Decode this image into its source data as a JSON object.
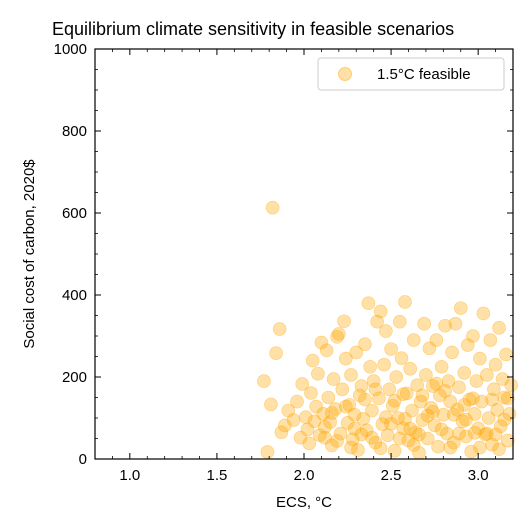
{
  "chart_data": {
    "type": "scatter",
    "title": "Equilibrium climate sensitivity in feasible scenarios",
    "xlabel": "ECS, °C",
    "ylabel": "Social cost of carbon, 2020$",
    "xlim": [
      0.8,
      3.2
    ],
    "ylim": [
      0,
      1000
    ],
    "xticks": [
      1.0,
      1.5,
      2.0,
      2.5,
      3.0
    ],
    "xtick_labels": [
      "1.0",
      "1.5",
      "2.0",
      "2.5",
      "3.0"
    ],
    "yticks": [
      0,
      200,
      400,
      600,
      800,
      1000
    ],
    "ytick_labels": [
      "0",
      "200",
      "400",
      "600",
      "800",
      "1000"
    ],
    "grid": false,
    "legend": {
      "placement": "top-right"
    },
    "series": [
      {
        "name": "1.5°C feasible",
        "color": "#ffa500",
        "opacity": 0.35,
        "points": [
          [
            1.82,
            613
          ],
          [
            1.77,
            190
          ],
          [
            1.79,
            17
          ],
          [
            1.84,
            258
          ],
          [
            1.86,
            317
          ],
          [
            1.81,
            133
          ],
          [
            1.87,
            65
          ],
          [
            1.89,
            82
          ],
          [
            1.91,
            118
          ],
          [
            1.94,
            95
          ],
          [
            1.96,
            140
          ],
          [
            1.98,
            52
          ],
          [
            1.99,
            183
          ],
          [
            2.01,
            102
          ],
          [
            2.02,
            72
          ],
          [
            2.03,
            38
          ],
          [
            2.04,
            161
          ],
          [
            2.05,
            240
          ],
          [
            2.07,
            128
          ],
          [
            2.08,
            208
          ],
          [
            2.09,
            58
          ],
          [
            2.1,
            284
          ],
          [
            2.11,
            110
          ],
          [
            2.12,
            78
          ],
          [
            2.13,
            265
          ],
          [
            2.14,
            150
          ],
          [
            2.15,
            90
          ],
          [
            2.16,
            33
          ],
          [
            2.17,
            195
          ],
          [
            2.18,
            122
          ],
          [
            2.19,
            298
          ],
          [
            2.2,
            305
          ],
          [
            2.21,
            62
          ],
          [
            2.22,
            170
          ],
          [
            2.23,
            336
          ],
          [
            2.24,
            245
          ],
          [
            2.25,
            88
          ],
          [
            2.26,
            132
          ],
          [
            2.27,
            205
          ],
          [
            2.28,
            48
          ],
          [
            2.29,
            108
          ],
          [
            2.3,
            260
          ],
          [
            2.31,
            22
          ],
          [
            2.32,
            155
          ],
          [
            2.33,
            178
          ],
          [
            2.34,
            98
          ],
          [
            2.35,
            280
          ],
          [
            2.36,
            70
          ],
          [
            2.37,
            380
          ],
          [
            2.38,
            225
          ],
          [
            2.39,
            118
          ],
          [
            2.4,
            190
          ],
          [
            2.41,
            40
          ],
          [
            2.42,
            335
          ],
          [
            2.43,
            148
          ],
          [
            2.44,
            360
          ],
          [
            2.45,
            85
          ],
          [
            2.46,
            230
          ],
          [
            2.47,
            312
          ],
          [
            2.48,
            58
          ],
          [
            2.49,
            170
          ],
          [
            2.5,
            268
          ],
          [
            2.51,
            130
          ],
          [
            2.52,
            20
          ],
          [
            2.53,
            200
          ],
          [
            2.54,
            100
          ],
          [
            2.55,
            335
          ],
          [
            2.56,
            246
          ],
          [
            2.57,
            75
          ],
          [
            2.58,
            383
          ],
          [
            2.59,
            160
          ],
          [
            2.6,
            45
          ],
          [
            2.61,
            220
          ],
          [
            2.62,
            118
          ],
          [
            2.63,
            290
          ],
          [
            2.64,
            65
          ],
          [
            2.65,
            180
          ],
          [
            2.66,
            15
          ],
          [
            2.67,
            140
          ],
          [
            2.68,
            95
          ],
          [
            2.69,
            330
          ],
          [
            2.7,
            205
          ],
          [
            2.71,
            50
          ],
          [
            2.72,
            270
          ],
          [
            2.73,
            125
          ],
          [
            2.74,
            178
          ],
          [
            2.75,
            82
          ],
          [
            2.76,
            290
          ],
          [
            2.77,
            30
          ],
          [
            2.78,
            155
          ],
          [
            2.79,
            225
          ],
          [
            2.8,
            108
          ],
          [
            2.81,
            325
          ],
          [
            2.82,
            62
          ],
          [
            2.83,
            190
          ],
          [
            2.84,
            140
          ],
          [
            2.85,
            260
          ],
          [
            2.86,
            40
          ],
          [
            2.87,
            330
          ],
          [
            2.88,
            120
          ],
          [
            2.89,
            175
          ],
          [
            2.9,
            368
          ],
          [
            2.91,
            92
          ],
          [
            2.92,
            210
          ],
          [
            2.93,
            55
          ],
          [
            2.94,
            278
          ],
          [
            2.95,
            145
          ],
          [
            2.96,
            18
          ],
          [
            2.97,
            300
          ],
          [
            2.98,
            110
          ],
          [
            2.99,
            190
          ],
          [
            3.0,
            75
          ],
          [
            3.01,
            245
          ],
          [
            3.02,
            140
          ],
          [
            3.03,
            355
          ],
          [
            3.04,
            60
          ],
          [
            3.05,
            205
          ],
          [
            3.06,
            100
          ],
          [
            3.07,
            290
          ],
          [
            3.08,
            35
          ],
          [
            3.09,
            170
          ],
          [
            3.1,
            230
          ],
          [
            3.11,
            120
          ],
          [
            3.12,
            320
          ],
          [
            3.13,
            80
          ],
          [
            3.14,
            195
          ],
          [
            3.15,
            150
          ],
          [
            3.16,
            255
          ],
          [
            3.17,
            45
          ],
          [
            3.18,
            110
          ],
          [
            3.19,
            180
          ],
          [
            2.06,
            92
          ],
          [
            2.19,
            44
          ],
          [
            2.27,
            28
          ],
          [
            2.33,
            60
          ],
          [
            2.44,
            26
          ],
          [
            2.52,
            142
          ],
          [
            2.57,
            158
          ],
          [
            2.63,
            34
          ],
          [
            2.71,
            106
          ],
          [
            2.76,
            184
          ],
          [
            2.84,
            28
          ],
          [
            2.93,
            96
          ],
          [
            3.01,
            28
          ],
          [
            3.08,
            145
          ],
          [
            3.15,
            96
          ],
          [
            2.16,
            112
          ],
          [
            2.29,
            74
          ],
          [
            2.41,
            170
          ],
          [
            2.47,
            102
          ],
          [
            2.55,
            50
          ],
          [
            2.61,
            74
          ],
          [
            2.68,
            155
          ],
          [
            2.74,
            115
          ],
          [
            2.81,
            166
          ],
          [
            2.89,
            62
          ],
          [
            2.97,
            148
          ],
          [
            3.05,
            62
          ],
          [
            3.12,
            24
          ],
          [
            2.24,
            128
          ],
          [
            2.35,
            145
          ],
          [
            2.5,
            86
          ],
          [
            2.66,
            60
          ],
          [
            2.79,
            72
          ],
          [
            2.92,
            132
          ],
          [
            3.1,
            60
          ],
          [
            2.12,
            52
          ],
          [
            2.39,
            52
          ],
          [
            2.58,
            98
          ],
          [
            2.86,
            108
          ],
          [
            2.98,
            64
          ],
          [
            3.17,
            148
          ]
        ]
      }
    ]
  }
}
